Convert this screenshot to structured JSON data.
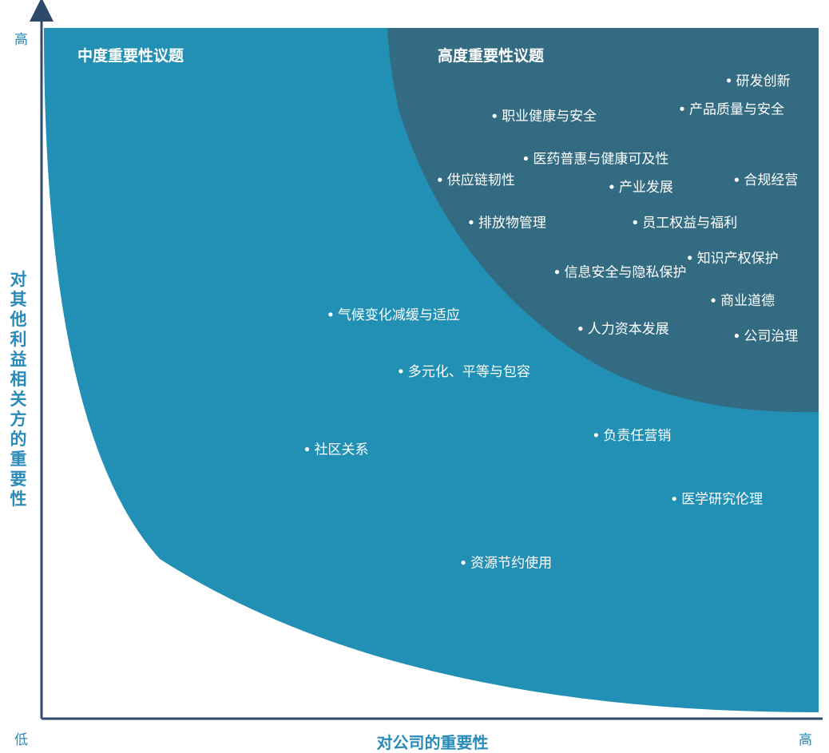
{
  "chart_data": {
    "type": "scatter",
    "title": "",
    "xlabel": "对公司的重要性",
    "ylabel": "对其他利益相关方的重要性",
    "axis_ticks": {
      "y_high": "高",
      "origin_low": "低",
      "x_high": "高"
    },
    "xlim": [
      0,
      1
    ],
    "ylim": [
      0,
      1
    ],
    "grid": false,
    "regions": [
      {
        "name": "中度重要性议题",
        "color": "#2290b5"
      },
      {
        "name": "高度重要性议题",
        "color": "#336c82"
      }
    ],
    "points": [
      {
        "label": "研发创新",
        "x": 0.88,
        "y": 0.9
      },
      {
        "label": "产品质量与安全",
        "x": 0.82,
        "y": 0.86
      },
      {
        "label": "职业健康与安全",
        "x": 0.58,
        "y": 0.85
      },
      {
        "label": "医药普惠与健康可及性",
        "x": 0.62,
        "y": 0.79
      },
      {
        "label": "供应链韧性",
        "x": 0.51,
        "y": 0.76
      },
      {
        "label": "产业发展",
        "x": 0.73,
        "y": 0.75
      },
      {
        "label": "合规经营",
        "x": 0.89,
        "y": 0.76
      },
      {
        "label": "排放物管理",
        "x": 0.55,
        "y": 0.7
      },
      {
        "label": "员工权益与福利",
        "x": 0.76,
        "y": 0.7
      },
      {
        "label": "知识产权保护",
        "x": 0.83,
        "y": 0.65
      },
      {
        "label": "信息安全与隐私保护",
        "x": 0.66,
        "y": 0.63
      },
      {
        "label": "商业道德",
        "x": 0.86,
        "y": 0.59
      },
      {
        "label": "气候变化减缓与适应",
        "x": 0.37,
        "y": 0.57
      },
      {
        "label": "人力资本发展",
        "x": 0.69,
        "y": 0.55
      },
      {
        "label": "公司治理",
        "x": 0.89,
        "y": 0.54
      },
      {
        "label": "多元化、平等与包容",
        "x": 0.46,
        "y": 0.49
      },
      {
        "label": "负责任营销",
        "x": 0.71,
        "y": 0.4
      },
      {
        "label": "社区关系",
        "x": 0.34,
        "y": 0.38
      },
      {
        "label": "医学研究伦理",
        "x": 0.81,
        "y": 0.31
      },
      {
        "label": "资源节约使用",
        "x": 0.54,
        "y": 0.22
      }
    ]
  }
}
